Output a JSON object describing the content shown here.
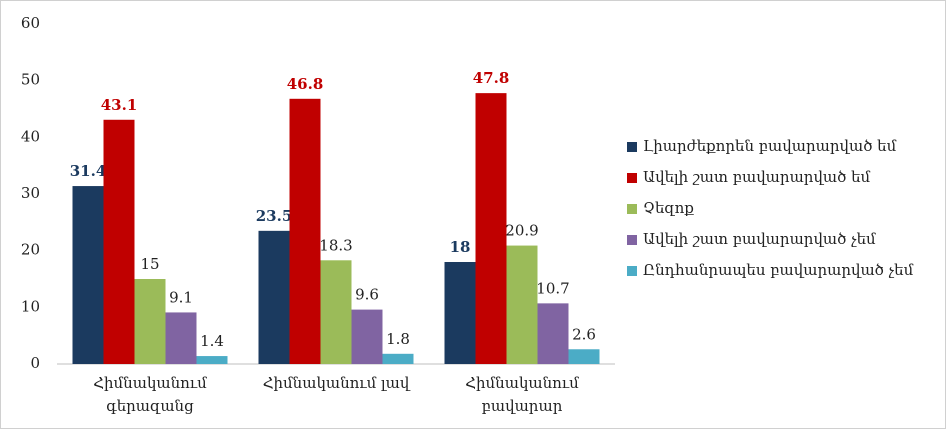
{
  "chart_data": {
    "type": "bar",
    "categories": [
      "Հիմնականում գերազանց",
      "Հիմնականում լավ",
      "Հիմնականում բավարար"
    ],
    "series": [
      {
        "name": "Լիարժեքորեն բավարարված եմ",
        "color": "#1b3a5f",
        "values": [
          31.4,
          23.5,
          18
        ]
      },
      {
        "name": "Ավելի շատ բավարարված եմ",
        "color": "#c00000",
        "values": [
          43.1,
          46.8,
          47.8
        ]
      },
      {
        "name": "Չեզոք",
        "color": "#9bbb59",
        "values": [
          15,
          18.3,
          20.9
        ]
      },
      {
        "name": "Ավելի շատ բավարարված չեմ",
        "color": "#8064a2",
        "values": [
          9.1,
          9.6,
          10.7
        ]
      },
      {
        "name": "Ընդհանրապես բավարարված չեմ",
        "color": "#4bacc6",
        "values": [
          1.4,
          1.8,
          2.6
        ]
      }
    ],
    "ylim": [
      0,
      60
    ],
    "yticks": [
      0,
      10,
      20,
      30,
      40,
      50,
      60
    ],
    "grid": false,
    "legend": "right"
  }
}
